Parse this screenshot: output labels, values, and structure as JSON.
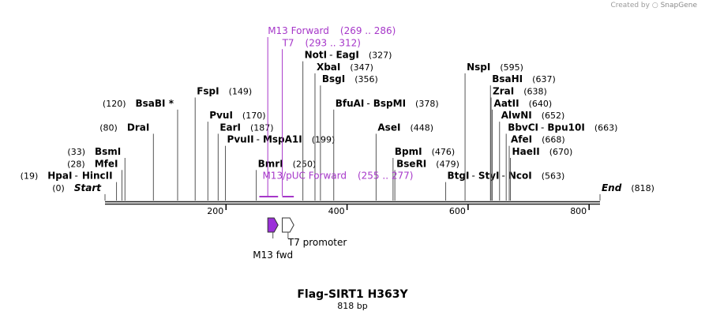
{
  "credit": {
    "text": "Created by",
    "brand": "SnapGene"
  },
  "sequence": {
    "name": "Flag-SIRT1 H363Y",
    "length_label": "818 bp",
    "length": 818
  },
  "axis": {
    "ticks": [
      200,
      400,
      600,
      800
    ]
  },
  "colors": {
    "primer": "#a637c9",
    "m13_arrow": "#9b30d9",
    "t7_arrow": "#ffffff",
    "backbone": "#222222"
  },
  "sites": [
    {
      "id": "hpai",
      "names": [
        "HpaI",
        "HincII"
      ],
      "pos": "(19)",
      "bp": 19,
      "pos_side": "left",
      "row": 13
    },
    {
      "id": "mfei",
      "names": [
        "MfeI"
      ],
      "pos": "(28)",
      "bp": 28,
      "pos_side": "left",
      "row": 12
    },
    {
      "id": "bsmi",
      "names": [
        "BsmI"
      ],
      "pos": "(33)",
      "bp": 33,
      "pos_side": "left",
      "row": 11
    },
    {
      "id": "drai",
      "names": [
        "DraI"
      ],
      "pos": "(80)",
      "bp": 80,
      "pos_side": "left",
      "row": 9
    },
    {
      "id": "bsabi",
      "names": [
        "BsaBI *"
      ],
      "pos": "(120)",
      "bp": 120,
      "pos_side": "left",
      "row": 7
    },
    {
      "id": "fspi",
      "names": [
        "FspI"
      ],
      "pos": "(149)",
      "bp": 149,
      "pos_side": "right",
      "row": 6
    },
    {
      "id": "pvui",
      "names": [
        "PvuI"
      ],
      "pos": "(170)",
      "bp": 170,
      "pos_side": "right",
      "row": 8
    },
    {
      "id": "eari",
      "names": [
        "EarI"
      ],
      "pos": "(187)",
      "bp": 187,
      "pos_side": "right",
      "row": 9
    },
    {
      "id": "pvuii",
      "names": [
        "PvuII",
        "MspA1I"
      ],
      "pos": "(199)",
      "bp": 199,
      "pos_side": "right",
      "row": 10
    },
    {
      "id": "bmri",
      "names": [
        "BmrI"
      ],
      "pos": "(250)",
      "bp": 250,
      "pos_side": "right",
      "row": 12
    },
    {
      "id": "noti",
      "names": [
        "NotI",
        "EagI"
      ],
      "pos": "(327)",
      "bp": 327,
      "pos_side": "right",
      "row": 3
    },
    {
      "id": "xbai",
      "names": [
        "XbaI"
      ],
      "pos": "(347)",
      "bp": 347,
      "pos_side": "right",
      "row": 4
    },
    {
      "id": "bsgi",
      "names": [
        "BsgI"
      ],
      "pos": "(356)",
      "bp": 356,
      "pos_side": "right",
      "row": 5
    },
    {
      "id": "bfuai",
      "names": [
        "BfuAI",
        "BspMI"
      ],
      "pos": "(378)",
      "bp": 378,
      "pos_side": "right",
      "row": 7
    },
    {
      "id": "asei",
      "names": [
        "AseI"
      ],
      "pos": "(448)",
      "bp": 448,
      "pos_side": "right",
      "row": 9
    },
    {
      "id": "bpmi",
      "names": [
        "BpmI"
      ],
      "pos": "(476)",
      "bp": 476,
      "pos_side": "right",
      "row": 11
    },
    {
      "id": "bseri",
      "names": [
        "BseRI"
      ],
      "pos": "(479)",
      "bp": 479,
      "pos_side": "right",
      "row": 12
    },
    {
      "id": "btgi",
      "names": [
        "BtgI",
        "StyI",
        "NcoI"
      ],
      "pos": "(563)",
      "bp": 563,
      "pos_side": "right",
      "row": 13
    },
    {
      "id": "nspi",
      "names": [
        "NspI"
      ],
      "pos": "(595)",
      "bp": 595,
      "pos_side": "right",
      "row": 4
    },
    {
      "id": "bsahi",
      "names": [
        "BsaHI"
      ],
      "pos": "(637)",
      "bp": 637,
      "pos_side": "right",
      "row": 5
    },
    {
      "id": "zrai",
      "names": [
        "ZraI"
      ],
      "pos": "(638)",
      "bp": 638,
      "pos_side": "right",
      "row": 6
    },
    {
      "id": "aatii",
      "names": [
        "AatII"
      ],
      "pos": "(640)",
      "bp": 640,
      "pos_side": "right",
      "row": 7
    },
    {
      "id": "alwni",
      "names": [
        "AlwNI"
      ],
      "pos": "(652)",
      "bp": 652,
      "pos_side": "right",
      "row": 8
    },
    {
      "id": "bbvci",
      "names": [
        "BbvCI",
        "Bpu10I"
      ],
      "pos": "(663)",
      "bp": 663,
      "pos_side": "right",
      "row": 9
    },
    {
      "id": "afei",
      "names": [
        "AfeI"
      ],
      "pos": "(668)",
      "bp": 668,
      "pos_side": "right",
      "row": 10
    },
    {
      "id": "haeii",
      "names": [
        "HaeII"
      ],
      "pos": "(670)",
      "bp": 670,
      "pos_side": "right",
      "row": 11
    }
  ],
  "ends": {
    "start": {
      "label": "Start",
      "pos": "(0)",
      "bp": 0
    },
    "end": {
      "label": "End",
      "pos": "(818)",
      "bp": 818
    }
  },
  "primers": [
    {
      "id": "m13fwd-primer",
      "name": "M13 Forward",
      "range": "(269 .. 286)",
      "start_bp": 269,
      "end_bp": 286,
      "row": 1
    },
    {
      "id": "t7-primer",
      "name": "T7",
      "range": "(293 .. 312)",
      "start_bp": 293,
      "end_bp": 312,
      "row": 2
    },
    {
      "id": "m13puc-primer",
      "name": "M13/pUC Forward",
      "range": "(255 .. 277)",
      "start_bp": 255,
      "end_bp": 277,
      "row": 13
    }
  ],
  "features": [
    {
      "id": "m13-fwd",
      "label": "M13 fwd",
      "start_bp": 269,
      "end_bp": 286,
      "label_side": "below"
    },
    {
      "id": "t7-promoter",
      "label": "T7 promoter",
      "start_bp": 293,
      "end_bp": 312,
      "label_side": "right"
    }
  ]
}
